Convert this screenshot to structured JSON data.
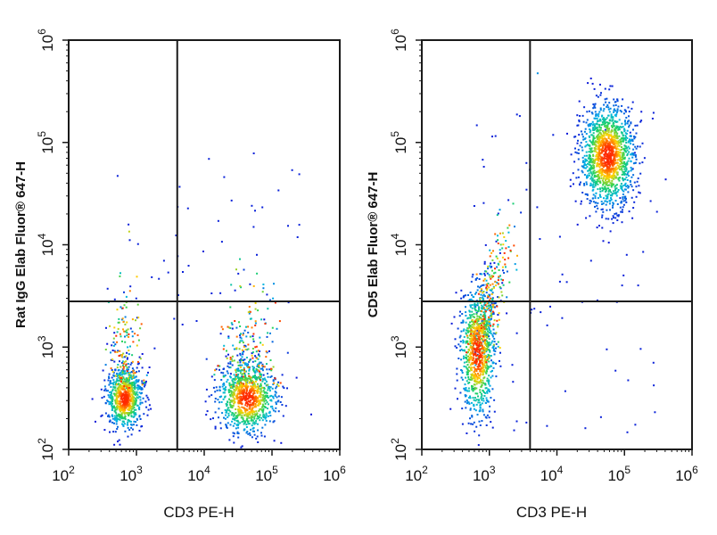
{
  "chart_data": [
    {
      "type": "scatter",
      "style": "flow-cytometry pseudocolor density dot plot",
      "xlabel": "CD3 PE-H",
      "ylabel": "Rat IgG Elab Fluor® 647-H",
      "xscale": "log",
      "yscale": "log",
      "xlim": [
        100,
        1000000
      ],
      "ylim": [
        100,
        1000000
      ],
      "xticks": [
        "10",
        "10",
        "10",
        "10",
        "10"
      ],
      "xtick_exponents": [
        "2",
        "3",
        "4",
        "5",
        "6"
      ],
      "yticks": [
        "10",
        "10",
        "10",
        "10",
        "10"
      ],
      "ytick_exponents": [
        "2",
        "3",
        "4",
        "5",
        "6"
      ],
      "quadrant_gate": {
        "x": 4000,
        "y": 2800
      },
      "grid": false,
      "populations": [
        {
          "center_x": 650,
          "center_y": 320,
          "spread_x_log": 0.13,
          "spread_y_log": 0.15,
          "count": 900,
          "tail": "upward"
        },
        {
          "center_x": 42000,
          "center_y": 320,
          "spread_x_log": 0.22,
          "spread_y_log": 0.17,
          "count": 1100,
          "tail": "upward"
        },
        {
          "scattered_events": 60,
          "x_range": [
            300,
            300000
          ],
          "y_range": [
            500,
            80000
          ]
        }
      ]
    },
    {
      "type": "scatter",
      "style": "flow-cytometry pseudocolor density dot plot",
      "xlabel": "CD3 PE-H",
      "ylabel": "CD5 Elab Fluor® 647-H",
      "xscale": "log",
      "yscale": "log",
      "xlim": [
        100,
        1000000
      ],
      "ylim": [
        100,
        1000000
      ],
      "xticks": [
        "10",
        "10",
        "10",
        "10",
        "10"
      ],
      "xtick_exponents": [
        "2",
        "3",
        "4",
        "5",
        "6"
      ],
      "yticks": [
        "10",
        "10",
        "10",
        "10",
        "10"
      ],
      "ytick_exponents": [
        "2",
        "3",
        "4",
        "5",
        "6"
      ],
      "quadrant_gate": {
        "x": 4000,
        "y": 2800
      },
      "grid": false,
      "populations": [
        {
          "center_x": 650,
          "center_y": 900,
          "spread_x_log": 0.13,
          "spread_y_log": 0.32,
          "count": 1200,
          "tail": "diagonal-up"
        },
        {
          "center_x": 55000,
          "center_y": 75000,
          "spread_x_log": 0.2,
          "spread_y_log": 0.25,
          "count": 1400,
          "tail": "none"
        },
        {
          "scattered_events": 80,
          "x_range": [
            500,
            300000
          ],
          "y_range": [
            150,
            200000
          ]
        }
      ]
    }
  ],
  "colors": {
    "density_low": "#0a14d8",
    "density_mid_low": "#00b4e6",
    "density_mid": "#1fd35a",
    "density_mid_high": "#ffd200",
    "density_high": "#ff2a00",
    "axes": "#1a1a1a",
    "gate": "#1a1a1a"
  }
}
